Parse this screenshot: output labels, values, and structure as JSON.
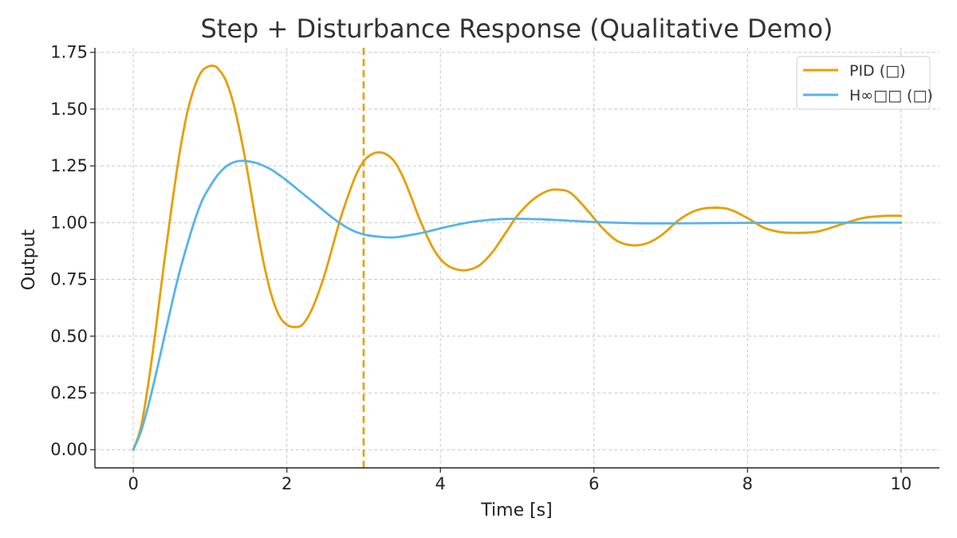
{
  "chart_data": {
    "type": "line",
    "title": "Step + Disturbance Response (Qualitative Demo)",
    "xlabel": "Time [s]",
    "ylabel": "Output",
    "xlim": [
      -0.5,
      10.5
    ],
    "ylim": [
      -0.08,
      1.77
    ],
    "x_ticks": [
      0,
      2,
      4,
      6,
      8,
      10
    ],
    "x_tick_labels": [
      "0",
      "2",
      "4",
      "6",
      "8",
      "10"
    ],
    "y_ticks": [
      0.0,
      0.25,
      0.5,
      0.75,
      1.0,
      1.25,
      1.5,
      1.75
    ],
    "y_tick_labels": [
      "0.00",
      "0.25",
      "0.50",
      "0.75",
      "1.00",
      "1.25",
      "1.50",
      "1.75"
    ],
    "grid": true,
    "legend_position": "top-right",
    "vline": {
      "x": 3.0,
      "style": "dashed",
      "color": "#E69F00"
    },
    "series": [
      {
        "name": "PID (□)",
        "color": "#E69F00",
        "x": [
          0,
          0.1,
          0.2,
          0.3,
          0.4,
          0.5,
          0.6,
          0.7,
          0.8,
          0.9,
          1.0,
          1.05,
          1.1,
          1.2,
          1.3,
          1.4,
          1.5,
          1.6,
          1.7,
          1.8,
          1.9,
          2.0,
          2.1,
          2.2,
          2.3,
          2.4,
          2.5,
          2.6,
          2.7,
          2.8,
          2.9,
          3.0,
          3.1,
          3.2,
          3.3,
          3.4,
          3.5,
          3.6,
          3.7,
          3.8,
          3.9,
          4.0,
          4.1,
          4.2,
          4.3,
          4.4,
          4.5,
          4.6,
          4.7,
          4.8,
          4.9,
          5.0,
          5.2,
          5.4,
          5.55,
          5.7,
          5.9,
          6.1,
          6.3,
          6.5,
          6.7,
          6.9,
          7.1,
          7.3,
          7.5,
          7.75,
          8.0,
          8.2,
          8.4,
          8.6,
          8.9,
          9.2,
          9.5,
          9.8,
          10.0
        ],
        "values": [
          0.0,
          0.1,
          0.3,
          0.55,
          0.82,
          1.07,
          1.3,
          1.48,
          1.6,
          1.67,
          1.69,
          1.69,
          1.68,
          1.63,
          1.53,
          1.38,
          1.2,
          1.0,
          0.82,
          0.68,
          0.59,
          0.55,
          0.54,
          0.55,
          0.6,
          0.68,
          0.78,
          0.9,
          1.02,
          1.12,
          1.21,
          1.27,
          1.3,
          1.31,
          1.3,
          1.27,
          1.21,
          1.13,
          1.04,
          0.96,
          0.89,
          0.84,
          0.81,
          0.795,
          0.79,
          0.795,
          0.81,
          0.84,
          0.88,
          0.93,
          0.98,
          1.03,
          1.1,
          1.14,
          1.145,
          1.13,
          1.06,
          0.98,
          0.92,
          0.9,
          0.91,
          0.95,
          1.01,
          1.05,
          1.065,
          1.06,
          1.02,
          0.98,
          0.96,
          0.955,
          0.96,
          0.99,
          1.02,
          1.03,
          1.03
        ]
      },
      {
        "name": "H∞□□ (□)",
        "color": "#56B4E9",
        "x": [
          0,
          0.1,
          0.2,
          0.3,
          0.4,
          0.5,
          0.6,
          0.7,
          0.8,
          0.9,
          1.0,
          1.1,
          1.2,
          1.3,
          1.4,
          1.5,
          1.6,
          1.7,
          1.8,
          1.9,
          2.0,
          2.2,
          2.4,
          2.6,
          2.8,
          3.0,
          3.2,
          3.4,
          3.6,
          3.8,
          4.0,
          4.2,
          4.4,
          4.6,
          4.8,
          5.0,
          5.3,
          5.6,
          6.0,
          6.5,
          7.0,
          7.5,
          8.0,
          8.5,
          9.0,
          9.5,
          10.0
        ],
        "values": [
          0.0,
          0.08,
          0.2,
          0.34,
          0.49,
          0.64,
          0.78,
          0.9,
          1.01,
          1.1,
          1.16,
          1.21,
          1.245,
          1.265,
          1.272,
          1.27,
          1.263,
          1.25,
          1.233,
          1.21,
          1.185,
          1.13,
          1.075,
          1.02,
          0.975,
          0.948,
          0.938,
          0.935,
          0.945,
          0.958,
          0.975,
          0.99,
          1.003,
          1.011,
          1.016,
          1.017,
          1.015,
          1.01,
          1.003,
          0.998,
          0.997,
          0.998,
          0.999,
          1.0,
          1.0,
          1.0,
          1.0
        ]
      }
    ]
  }
}
